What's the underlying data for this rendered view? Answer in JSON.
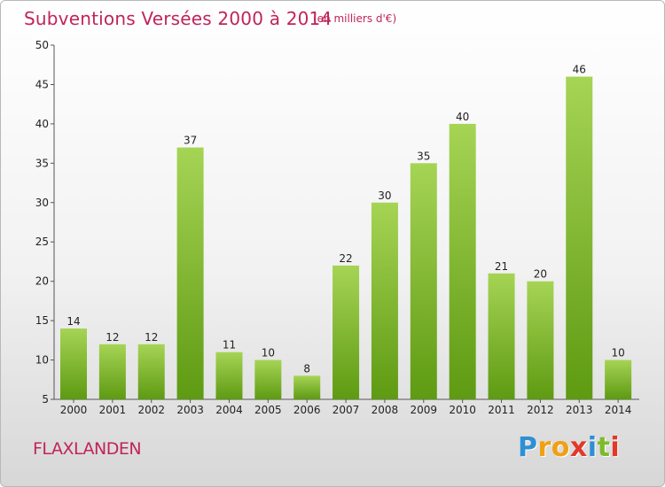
{
  "chart_data": {
    "type": "bar",
    "title": "Subventions Versées 2000 à 2014",
    "subtitle": "(en milliers d'€)",
    "categories": [
      "2000",
      "2001",
      "2002",
      "2003",
      "2004",
      "2005",
      "2006",
      "2007",
      "2008",
      "2009",
      "2010",
      "2011",
      "2012",
      "2013",
      "2014"
    ],
    "values": [
      14,
      12,
      12,
      37,
      11,
      10,
      8,
      22,
      30,
      35,
      40,
      21,
      20,
      46,
      10
    ],
    "ylim": [
      5,
      50
    ],
    "yticks": [
      5,
      10,
      15,
      20,
      25,
      30,
      35,
      40,
      45,
      50
    ],
    "xlabel": "",
    "ylabel": "",
    "grid": false,
    "bar_color_top": "#a6d455",
    "bar_color_bottom": "#5e9a12"
  },
  "commune": "FLAXLANDEN",
  "logo": {
    "letters": [
      "P",
      "r",
      "o",
      "x",
      "i",
      "t",
      "i"
    ],
    "colors": [
      "#2f8fd3",
      "#f0a013",
      "#f0a013",
      "#e2382a",
      "#2f8fd3",
      "#7dbb2b",
      "#e2382a"
    ]
  }
}
